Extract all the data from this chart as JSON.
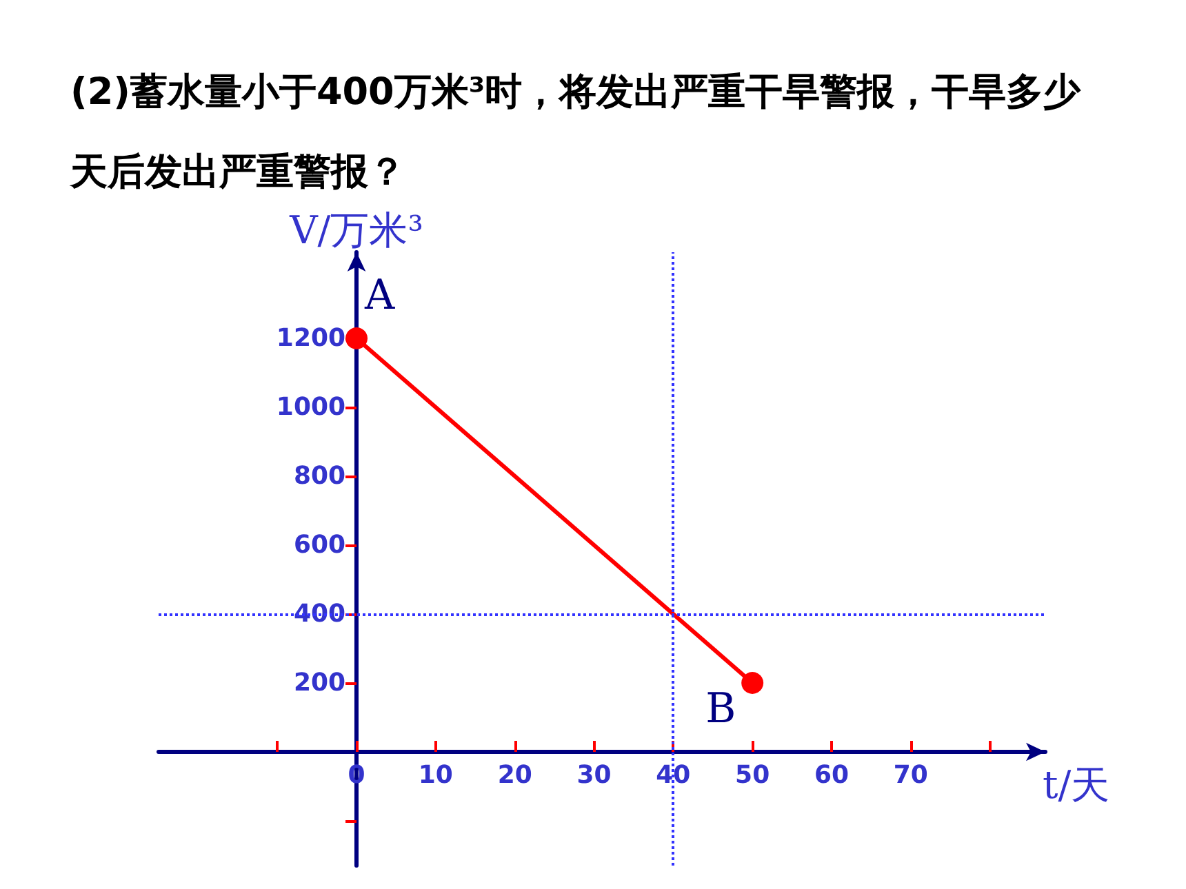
{
  "chart_data": {
    "type": "line",
    "title": "(2)蓄水量小于400万米³时，将发出严重干旱警报，干旱多少天后发出严重警报？",
    "xlabel": "t/天",
    "ylabel": "V/万米³",
    "x": [
      0,
      50
    ],
    "series": [
      {
        "color": "#ff0000",
        "values": [
          1200,
          200
        ]
      }
    ],
    "xlim": [
      -25,
      87
    ],
    "ylim": [
      -330,
      1450
    ],
    "xticks": [
      {
        "value": -10,
        "label": null
      },
      0,
      10,
      20,
      30,
      40,
      50,
      60,
      70,
      {
        "value": 80,
        "label": null
      }
    ],
    "yticks": [
      {
        "value": -200,
        "label": null
      },
      200,
      400,
      600,
      800,
      1000,
      1200
    ],
    "ref_lines": [
      {
        "axis": "x",
        "value": 40,
        "color": "#3333ff",
        "line_style": "dotted"
      },
      {
        "axis": "y",
        "value": 400,
        "color": "#3333ff",
        "line_style": "dotted"
      }
    ],
    "annotations": [
      {
        "text": "A",
        "x": 0,
        "y": 1200
      },
      {
        "text": "B",
        "x": 50,
        "y": 200
      }
    ],
    "marker": "circle",
    "line_style": "solid",
    "grid": false
  }
}
